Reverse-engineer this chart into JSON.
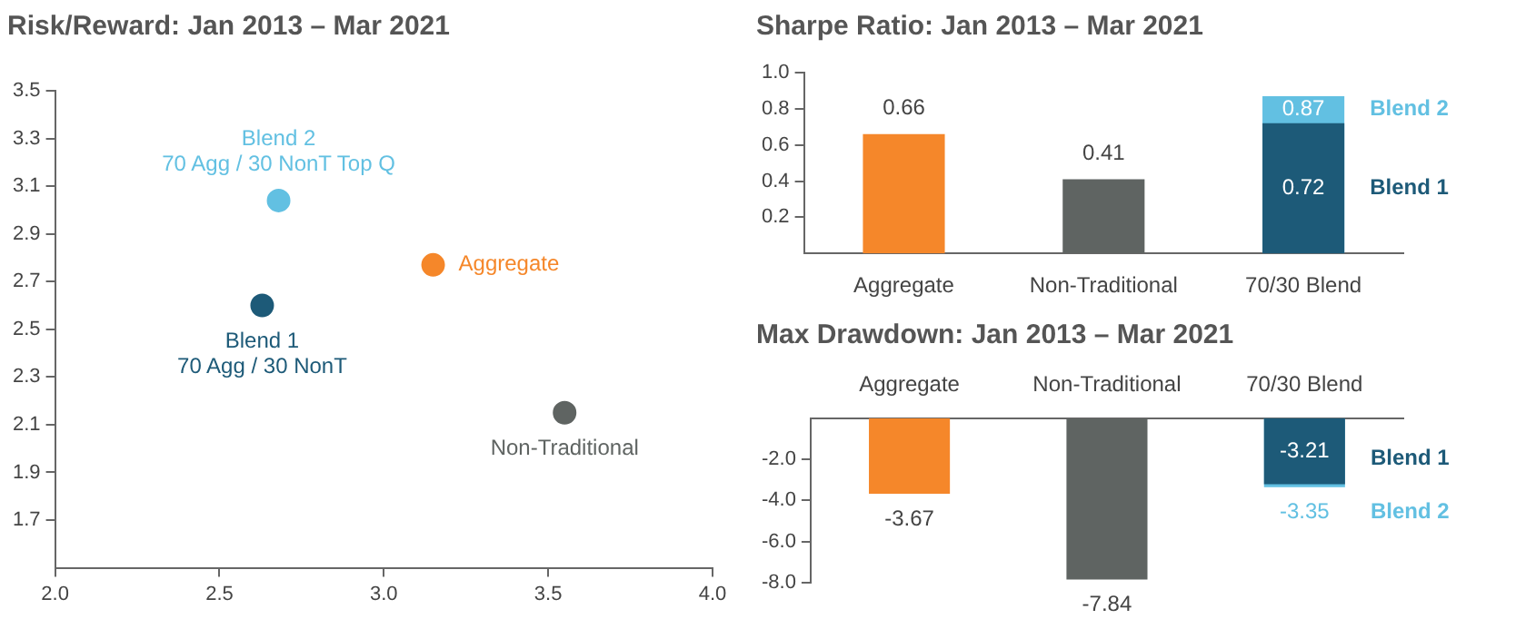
{
  "chart_data": [
    {
      "type": "scatter",
      "title": "Risk/Reward: Jan 2013 – Mar 2021",
      "xlim": [
        2,
        4
      ],
      "xticks": [
        {
          "value": 2,
          "label": "2.0"
        },
        2.5,
        {
          "value": 3,
          "label": "3.0"
        },
        3.5,
        {
          "value": 4,
          "label": "4.0"
        }
      ],
      "ylim": [
        1.5,
        3.5
      ],
      "yticks": [
        1.7,
        1.9,
        2.1,
        2.3,
        2.5,
        2.7,
        2.9,
        3.1,
        3.3,
        3.5
      ],
      "grid": false,
      "legend": false,
      "marker": "circle",
      "series": [
        {
          "name": "Aggregate",
          "color": "#f5872a",
          "x": [
            3.15
          ],
          "values": [
            2.77
          ]
        },
        {
          "name": "Non-Traditional",
          "color": "#5f6462",
          "x": [
            3.55
          ],
          "values": [
            2.15
          ]
        },
        {
          "name": "Blend 1\n70 Agg / 30 NonT",
          "color": "#1d5a78",
          "x": [
            2.63
          ],
          "values": [
            2.6
          ]
        },
        {
          "name": "Blend 2\n70 Agg / 30 NonT Top Q",
          "color": "#62c0e2",
          "x": [
            2.68
          ],
          "values": [
            3.04
          ]
        }
      ]
    },
    {
      "type": "bar",
      "title": "Sharpe Ratio: Jan 2013 – Mar 2021",
      "categories": [
        "Aggregate",
        "Non-Traditional",
        "70/30 Blend"
      ],
      "ylim": [
        0,
        1
      ],
      "yticks": [
        0.2,
        0.4,
        0.6,
        0.8,
        {
          "value": 1,
          "label": "1.0"
        }
      ],
      "grid": false,
      "legend": false,
      "data_labels": true,
      "series": [
        {
          "colors": [
            "#f5872a",
            "#5f6462",
            "#1d5a78"
          ],
          "values": [
            0.66,
            0.41,
            null
          ]
        },
        {
          "name": "Blend 1",
          "color": "#1d5a78",
          "values": [
            null,
            null,
            0.72
          ]
        },
        {
          "name": "Blend 2",
          "color": "#62c0e2",
          "values": [
            null,
            null,
            0.87
          ]
        }
      ]
    },
    {
      "type": "bar",
      "title": "Max Drawdown: Jan 2013 – Mar 2021",
      "categories": [
        "Aggregate",
        "Non-Traditional",
        "70/30 Blend"
      ],
      "ylim": [
        -8,
        0
      ],
      "yticks": [
        {
          "value": -2,
          "label": "-2.0"
        },
        {
          "value": -4,
          "label": "-4.0"
        },
        {
          "value": -6,
          "label": "-6.0"
        },
        {
          "value": -8,
          "label": "-8.0"
        }
      ],
      "grid": false,
      "legend": false,
      "data_labels": true,
      "series": [
        {
          "colors": [
            "#f5872a",
            "#5f6462",
            "#1d5a78"
          ],
          "values": [
            -3.67,
            -7.84,
            null
          ]
        },
        {
          "name": "Blend 1",
          "color": "#1d5a78",
          "values": [
            null,
            null,
            -3.21
          ]
        },
        {
          "name": "Blend 2",
          "color": "#62c0e2",
          "values": [
            null,
            null,
            -3.35
          ]
        }
      ]
    }
  ]
}
